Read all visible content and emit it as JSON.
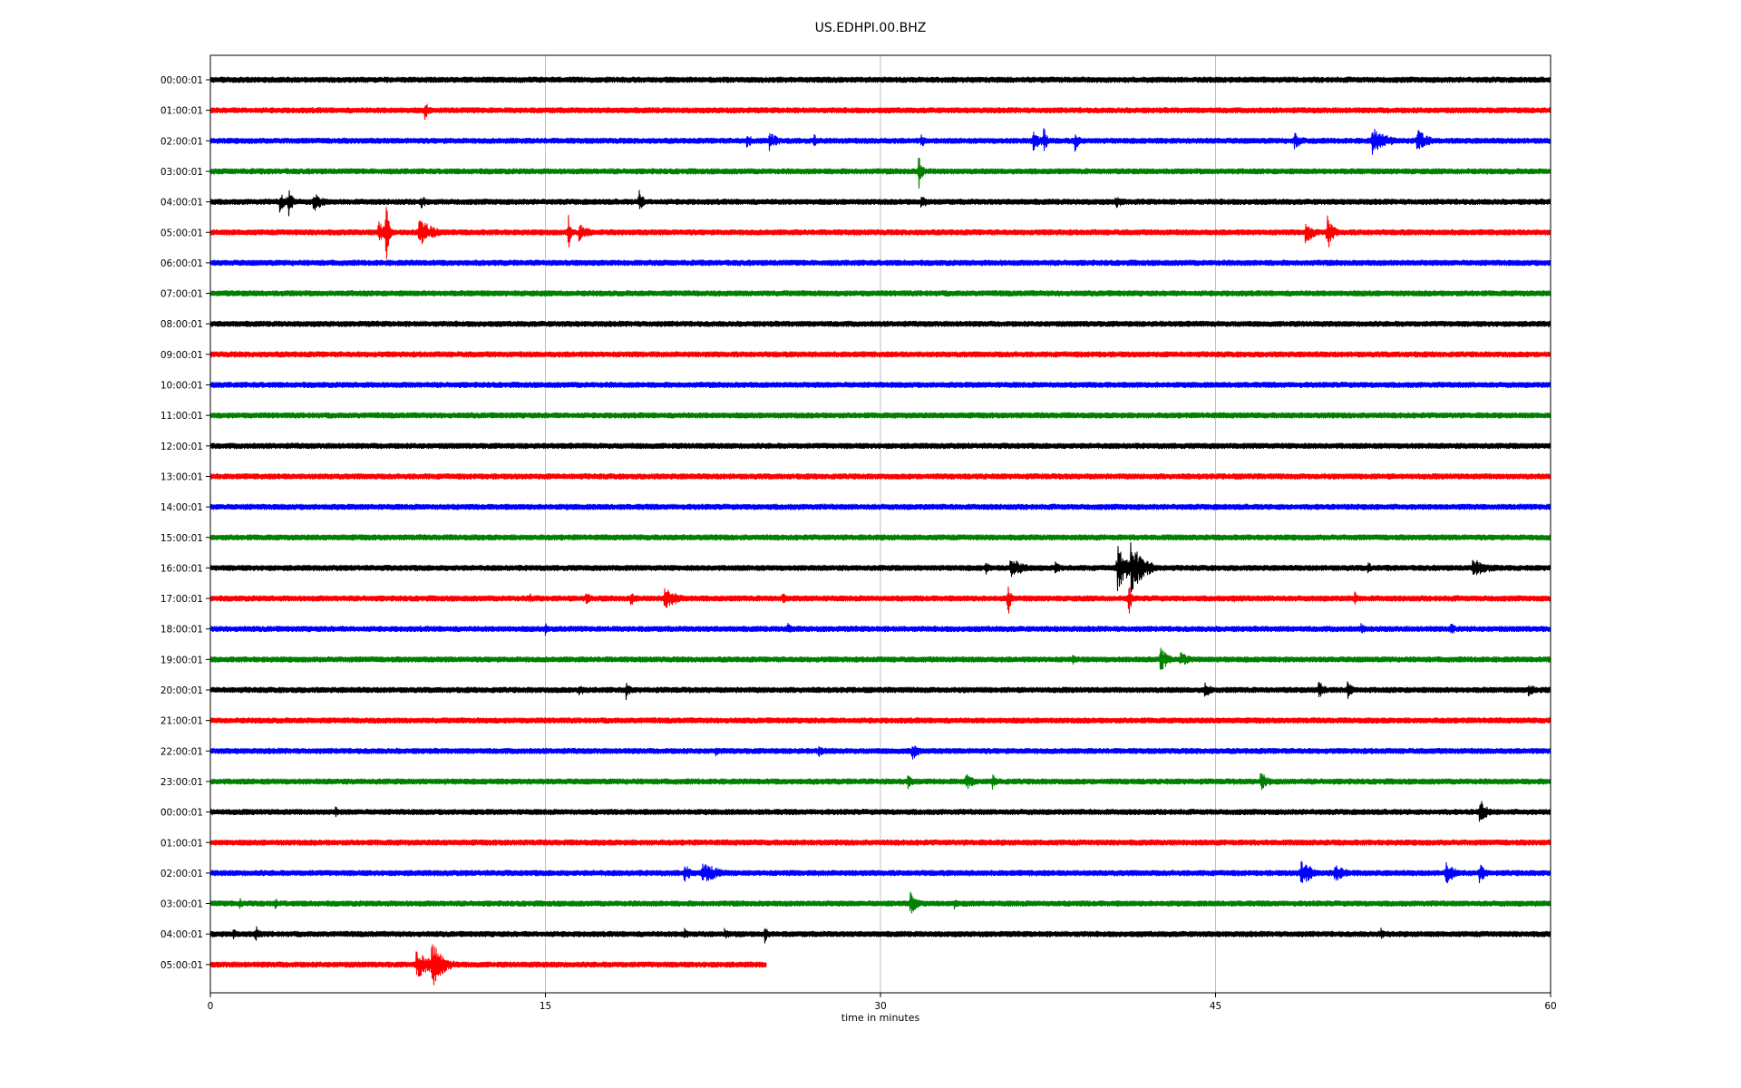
{
  "chart_data": {
    "type": "line",
    "title": "US.EDHPI.00.BHZ",
    "xlabel": "time in minutes",
    "ylabel": "",
    "xlim": [
      0,
      60
    ],
    "x_ticks": [
      0,
      15,
      30,
      45,
      60
    ],
    "vertical_grid": true,
    "color_cycle": [
      "#000000",
      "#ff0000",
      "#0000ff",
      "#008000"
    ],
    "rows": [
      {
        "label": "00:00:01",
        "end_minute": 60,
        "events": []
      },
      {
        "label": "01:00:01",
        "end_minute": 60,
        "events": [
          {
            "t": 9.6,
            "amp": 0.45,
            "dur": 0.2
          }
        ]
      },
      {
        "label": "02:00:01",
        "end_minute": 60,
        "events": [
          {
            "t": 24,
            "amp": 0.35,
            "dur": 0.3
          },
          {
            "t": 25,
            "amp": 0.45,
            "dur": 0.4
          },
          {
            "t": 27,
            "amp": 0.35,
            "dur": 0.2
          },
          {
            "t": 31.8,
            "amp": 0.3,
            "dur": 0.3
          },
          {
            "t": 36.8,
            "amp": 0.5,
            "dur": 0.4
          },
          {
            "t": 37.3,
            "amp": 0.6,
            "dur": 0.2
          },
          {
            "t": 38.7,
            "amp": 0.5,
            "dur": 0.2
          },
          {
            "t": 48.5,
            "amp": 0.4,
            "dur": 0.4
          },
          {
            "t": 52,
            "amp": 0.6,
            "dur": 0.7
          },
          {
            "t": 54,
            "amp": 0.55,
            "dur": 0.5
          }
        ]
      },
      {
        "label": "03:00:01",
        "end_minute": 60,
        "events": [
          {
            "t": 31.7,
            "amp": 0.9,
            "dur": 0.15
          }
        ]
      },
      {
        "label": "04:00:01",
        "end_minute": 60,
        "events": [
          {
            "t": 3.1,
            "amp": 0.45,
            "dur": 0.3
          },
          {
            "t": 3.5,
            "amp": 0.8,
            "dur": 0.15
          },
          {
            "t": 4.6,
            "amp": 0.45,
            "dur": 0.5
          },
          {
            "t": 9.4,
            "amp": 0.35,
            "dur": 0.3
          },
          {
            "t": 19.2,
            "amp": 0.7,
            "dur": 0.15
          },
          {
            "t": 31.8,
            "amp": 0.35,
            "dur": 0.3
          },
          {
            "t": 40.5,
            "amp": 0.3,
            "dur": 0.4
          }
        ]
      },
      {
        "label": "05:00:01",
        "end_minute": 60,
        "events": [
          {
            "t": 7.5,
            "amp": 0.5,
            "dur": 0.5
          },
          {
            "t": 7.85,
            "amp": 1.8,
            "dur": 0.12
          },
          {
            "t": 9.3,
            "amp": 0.7,
            "dur": 0.6
          },
          {
            "t": 16.0,
            "amp": 1.0,
            "dur": 0.12
          },
          {
            "t": 16.5,
            "amp": 0.4,
            "dur": 0.5
          },
          {
            "t": 49.0,
            "amp": 0.55,
            "dur": 0.4
          },
          {
            "t": 50.0,
            "amp": 0.9,
            "dur": 0.25
          }
        ]
      },
      {
        "label": "06:00:01",
        "end_minute": 60,
        "events": []
      },
      {
        "label": "07:00:01",
        "end_minute": 60,
        "events": []
      },
      {
        "label": "08:00:01",
        "end_minute": 60,
        "events": []
      },
      {
        "label": "09:00:01",
        "end_minute": 60,
        "events": []
      },
      {
        "label": "10:00:01",
        "end_minute": 60,
        "events": []
      },
      {
        "label": "11:00:01",
        "end_minute": 60,
        "events": []
      },
      {
        "label": "12:00:01",
        "end_minute": 60,
        "events": []
      },
      {
        "label": "13:00:01",
        "end_minute": 60,
        "events": []
      },
      {
        "label": "14:00:01",
        "end_minute": 60,
        "events": []
      },
      {
        "label": "15:00:01",
        "end_minute": 60,
        "events": []
      },
      {
        "label": "16:00:01",
        "end_minute": 60,
        "events": [
          {
            "t": 34.7,
            "amp": 0.4,
            "dur": 0.15
          },
          {
            "t": 35.8,
            "amp": 0.45,
            "dur": 0.7
          },
          {
            "t": 37.8,
            "amp": 0.3,
            "dur": 0.3
          },
          {
            "t": 40.6,
            "amp": 1.0,
            "dur": 0.5
          },
          {
            "t": 41.2,
            "amp": 1.1,
            "dur": 0.6
          },
          {
            "t": 51.8,
            "amp": 0.35,
            "dur": 0.2
          },
          {
            "t": 56.5,
            "amp": 0.45,
            "dur": 0.8
          }
        ]
      },
      {
        "label": "17:00:01",
        "end_minute": 60,
        "events": [
          {
            "t": 14.3,
            "amp": 0.25,
            "dur": 0.2
          },
          {
            "t": 16.8,
            "amp": 0.5,
            "dur": 0.2
          },
          {
            "t": 18.8,
            "amp": 0.35,
            "dur": 0.3
          },
          {
            "t": 20.3,
            "amp": 0.55,
            "dur": 0.6
          },
          {
            "t": 25.6,
            "amp": 0.3,
            "dur": 0.2
          },
          {
            "t": 35.7,
            "amp": 0.9,
            "dur": 0.12
          },
          {
            "t": 41.1,
            "amp": 0.9,
            "dur": 0.12
          },
          {
            "t": 45.8,
            "amp": 0.25,
            "dur": 0.2
          },
          {
            "t": 51.2,
            "amp": 0.4,
            "dur": 0.2
          }
        ]
      },
      {
        "label": "18:00:01",
        "end_minute": 60,
        "events": [
          {
            "t": 15.0,
            "amp": 0.3,
            "dur": 0.2
          },
          {
            "t": 25.8,
            "amp": 0.3,
            "dur": 0.3
          },
          {
            "t": 51.5,
            "amp": 0.25,
            "dur": 0.3
          },
          {
            "t": 55.5,
            "amp": 0.3,
            "dur": 0.3
          }
        ]
      },
      {
        "label": "19:00:01",
        "end_minute": 60,
        "events": [
          {
            "t": 38.6,
            "amp": 0.25,
            "dur": 0.2
          },
          {
            "t": 42.5,
            "amp": 0.6,
            "dur": 0.4
          },
          {
            "t": 43.4,
            "amp": 0.4,
            "dur": 0.4
          }
        ]
      },
      {
        "label": "20:00:01",
        "end_minute": 60,
        "events": [
          {
            "t": 16.5,
            "amp": 0.3,
            "dur": 0.3
          },
          {
            "t": 18.6,
            "amp": 0.45,
            "dur": 0.2
          },
          {
            "t": 44.5,
            "amp": 0.4,
            "dur": 0.3
          },
          {
            "t": 49.6,
            "amp": 0.45,
            "dur": 0.3
          },
          {
            "t": 50.9,
            "amp": 0.45,
            "dur": 0.3
          },
          {
            "t": 59,
            "amp": 0.3,
            "dur": 0.4
          }
        ]
      },
      {
        "label": "21:00:01",
        "end_minute": 60,
        "events": []
      },
      {
        "label": "22:00:01",
        "end_minute": 60,
        "events": [
          {
            "t": 22.6,
            "amp": 0.25,
            "dur": 0.2
          },
          {
            "t": 27.2,
            "amp": 0.3,
            "dur": 0.3
          },
          {
            "t": 31.4,
            "amp": 0.45,
            "dur": 0.3
          }
        ]
      },
      {
        "label": "23:00:01",
        "end_minute": 60,
        "events": [
          {
            "t": 31.2,
            "amp": 0.35,
            "dur": 0.3
          },
          {
            "t": 33.8,
            "amp": 0.4,
            "dur": 0.4
          },
          {
            "t": 35.0,
            "amp": 0.35,
            "dur": 0.2
          },
          {
            "t": 47.0,
            "amp": 0.45,
            "dur": 0.4
          }
        ]
      },
      {
        "label": "00:00:01",
        "end_minute": 60,
        "events": [
          {
            "t": 5.6,
            "amp": 0.25,
            "dur": 0.2
          },
          {
            "t": 56.8,
            "amp": 0.7,
            "dur": 0.3
          }
        ]
      },
      {
        "label": "01:00:01",
        "end_minute": 60,
        "events": []
      },
      {
        "label": "02:00:01",
        "end_minute": 60,
        "events": [
          {
            "t": 21.2,
            "amp": 0.4,
            "dur": 0.4
          },
          {
            "t": 22.0,
            "amp": 0.5,
            "dur": 0.8
          },
          {
            "t": 48.8,
            "amp": 0.6,
            "dur": 0.6
          },
          {
            "t": 50.3,
            "amp": 0.4,
            "dur": 0.6
          },
          {
            "t": 55.3,
            "amp": 0.55,
            "dur": 0.4
          },
          {
            "t": 56.8,
            "amp": 0.45,
            "dur": 0.3
          }
        ]
      },
      {
        "label": "03:00:01",
        "end_minute": 60,
        "events": [
          {
            "t": 1.3,
            "amp": 0.35,
            "dur": 0.2
          },
          {
            "t": 2.9,
            "amp": 0.3,
            "dur": 0.15
          },
          {
            "t": 31.3,
            "amp": 0.6,
            "dur": 0.3
          },
          {
            "t": 33.3,
            "amp": 0.25,
            "dur": 0.2
          }
        ]
      },
      {
        "label": "04:00:01",
        "end_minute": 60,
        "events": [
          {
            "t": 1.0,
            "amp": 0.3,
            "dur": 0.2
          },
          {
            "t": 2.0,
            "amp": 0.45,
            "dur": 0.2
          },
          {
            "t": 21.2,
            "amp": 0.3,
            "dur": 0.3
          },
          {
            "t": 23.0,
            "amp": 0.25,
            "dur": 0.4
          },
          {
            "t": 24.8,
            "amp": 0.45,
            "dur": 0.15
          },
          {
            "t": 52.4,
            "amp": 0.3,
            "dur": 0.2
          }
        ]
      },
      {
        "label": "05:00:01",
        "end_minute": 24.9,
        "events": [
          {
            "t": 9.2,
            "amp": 0.6,
            "dur": 0.9
          },
          {
            "t": 9.9,
            "amp": 1.1,
            "dur": 0.5
          }
        ]
      }
    ]
  }
}
